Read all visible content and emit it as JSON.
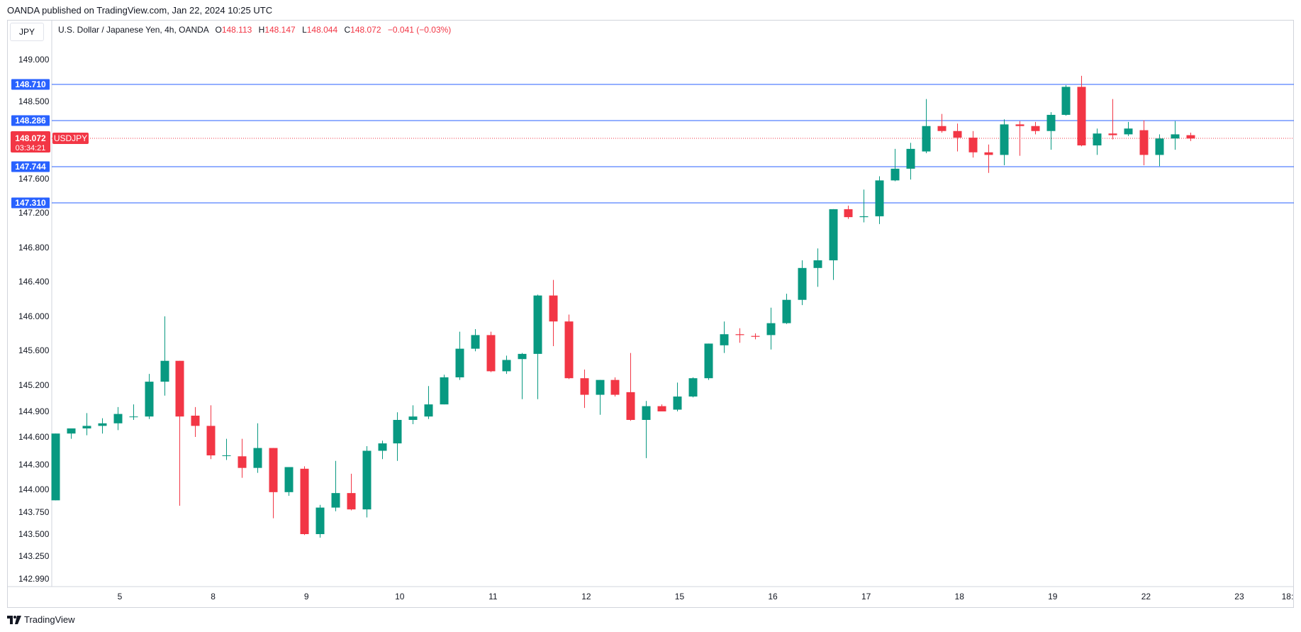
{
  "header": {
    "published": "OANDA published on TradingView.com, Jan 22, 2024 10:25 UTC",
    "currency_button": "JPY"
  },
  "legend": {
    "symbol_desc": "U.S. Dollar / Japanese Yen, 4h, OANDA",
    "open_label": "O",
    "open": "148.113",
    "high_label": "H",
    "high": "148.147",
    "low_label": "L",
    "low": "148.044",
    "close_label": "C",
    "close": "148.072",
    "change": "−0.041 (−0.03%)"
  },
  "footer": {
    "brand": "TradingView"
  },
  "colors": {
    "up": "#089981",
    "down": "#f23645",
    "hline": "#2962ff",
    "grid_text": "#131722",
    "axis_border": "#d1d4dc"
  },
  "chart_data": {
    "type": "candlestick",
    "symbol": "USDJPY",
    "interval": "4h",
    "y_ticks": [
      "149.000",
      "148.500",
      "147.600",
      "147.200",
      "146.800",
      "146.400",
      "146.000",
      "145.600",
      "145.200",
      "144.900",
      "144.600",
      "144.300",
      "144.000",
      "143.750",
      "143.500",
      "143.250",
      "142.990"
    ],
    "x_ticks": [
      {
        "label": "5",
        "at": 4.15
      },
      {
        "label": "8",
        "at": 10.15
      },
      {
        "label": "9",
        "at": 16.15
      },
      {
        "label": "10",
        "at": 22.15
      },
      {
        "label": "11",
        "at": 28.15
      },
      {
        "label": "12",
        "at": 34.15
      },
      {
        "label": "15",
        "at": 40.15
      },
      {
        "label": "16",
        "at": 46.15
      },
      {
        "label": "17",
        "at": 52.15
      },
      {
        "label": "18",
        "at": 58.15
      },
      {
        "label": "19",
        "at": 64.15
      },
      {
        "label": "22",
        "at": 70.15
      },
      {
        "label": "23",
        "at": 76.15
      },
      {
        "label": "18:",
        "at": 79.25
      }
    ],
    "horizontal_lines": [
      {
        "value": 148.71,
        "label": "148.710"
      },
      {
        "value": 148.286,
        "label": "148.286"
      },
      {
        "value": 147.744,
        "label": "147.744"
      },
      {
        "value": 147.31,
        "label": "147.310"
      }
    ],
    "last_price": {
      "value": 148.072,
      "label": "148.072",
      "countdown": "03:34:21",
      "symbol_label": "USDJPY"
    },
    "candles": [
      {
        "o": 143.88,
        "h": 144.64,
        "l": 143.88,
        "c": 144.64
      },
      {
        "o": 144.64,
        "h": 144.7,
        "l": 144.58,
        "c": 144.7
      },
      {
        "o": 144.7,
        "h": 144.88,
        "l": 144.62,
        "c": 144.73
      },
      {
        "o": 144.73,
        "h": 144.82,
        "l": 144.64,
        "c": 144.76
      },
      {
        "o": 144.76,
        "h": 144.95,
        "l": 144.68,
        "c": 144.87
      },
      {
        "o": 144.84,
        "h": 144.98,
        "l": 144.8,
        "c": 144.84
      },
      {
        "o": 144.84,
        "h": 145.33,
        "l": 144.81,
        "c": 145.24
      },
      {
        "o": 145.24,
        "h": 146.0,
        "l": 145.08,
        "c": 145.48
      },
      {
        "o": 145.48,
        "h": 145.48,
        "l": 143.82,
        "c": 144.84
      },
      {
        "o": 144.85,
        "h": 144.95,
        "l": 144.6,
        "c": 144.73
      },
      {
        "o": 144.73,
        "h": 144.97,
        "l": 144.36,
        "c": 144.4
      },
      {
        "o": 144.4,
        "h": 144.58,
        "l": 144.35,
        "c": 144.4
      },
      {
        "o": 144.39,
        "h": 144.58,
        "l": 144.14,
        "c": 144.26
      },
      {
        "o": 144.26,
        "h": 144.76,
        "l": 144.2,
        "c": 144.48
      },
      {
        "o": 144.48,
        "h": 144.48,
        "l": 143.68,
        "c": 143.97
      },
      {
        "o": 143.97,
        "h": 144.27,
        "l": 143.93,
        "c": 144.27
      },
      {
        "o": 144.25,
        "h": 144.28,
        "l": 143.49,
        "c": 143.5
      },
      {
        "o": 143.5,
        "h": 143.83,
        "l": 143.46,
        "c": 143.8
      },
      {
        "o": 143.8,
        "h": 144.34,
        "l": 143.76,
        "c": 143.96
      },
      {
        "o": 143.96,
        "h": 144.19,
        "l": 143.77,
        "c": 143.78
      },
      {
        "o": 143.78,
        "h": 144.5,
        "l": 143.69,
        "c": 144.45
      },
      {
        "o": 144.45,
        "h": 144.56,
        "l": 144.36,
        "c": 144.53
      },
      {
        "o": 144.53,
        "h": 144.89,
        "l": 144.34,
        "c": 144.8
      },
      {
        "o": 144.8,
        "h": 144.97,
        "l": 144.75,
        "c": 144.84
      },
      {
        "o": 144.84,
        "h": 145.19,
        "l": 144.81,
        "c": 144.98
      },
      {
        "o": 144.98,
        "h": 145.32,
        "l": 144.98,
        "c": 145.29
      },
      {
        "o": 145.29,
        "h": 145.82,
        "l": 145.26,
        "c": 145.62
      },
      {
        "o": 145.62,
        "h": 145.85,
        "l": 145.59,
        "c": 145.78
      },
      {
        "o": 145.78,
        "h": 145.82,
        "l": 145.35,
        "c": 145.36
      },
      {
        "o": 145.36,
        "h": 145.54,
        "l": 145.33,
        "c": 145.49
      },
      {
        "o": 145.5,
        "h": 145.57,
        "l": 145.04,
        "c": 145.56
      },
      {
        "o": 145.56,
        "h": 146.25,
        "l": 145.04,
        "c": 146.24
      },
      {
        "o": 146.24,
        "h": 146.42,
        "l": 145.65,
        "c": 145.94
      },
      {
        "o": 145.94,
        "h": 146.02,
        "l": 145.27,
        "c": 145.28
      },
      {
        "o": 145.28,
        "h": 145.38,
        "l": 144.94,
        "c": 145.09
      },
      {
        "o": 145.09,
        "h": 145.26,
        "l": 144.86,
        "c": 145.26
      },
      {
        "o": 145.26,
        "h": 145.29,
        "l": 145.07,
        "c": 145.09
      },
      {
        "o": 145.12,
        "h": 145.57,
        "l": 144.79,
        "c": 144.8
      },
      {
        "o": 144.8,
        "h": 145.02,
        "l": 144.37,
        "c": 144.96
      },
      {
        "o": 144.96,
        "h": 144.98,
        "l": 144.9,
        "c": 144.9
      },
      {
        "o": 144.92,
        "h": 145.23,
        "l": 144.9,
        "c": 145.07
      },
      {
        "o": 145.07,
        "h": 145.29,
        "l": 145.06,
        "c": 145.28
      },
      {
        "o": 145.28,
        "h": 145.68,
        "l": 145.26,
        "c": 145.68
      },
      {
        "o": 145.66,
        "h": 145.94,
        "l": 145.57,
        "c": 145.79
      },
      {
        "o": 145.79,
        "h": 145.86,
        "l": 145.69,
        "c": 145.78
      },
      {
        "o": 145.77,
        "h": 145.8,
        "l": 145.73,
        "c": 145.76
      },
      {
        "o": 145.78,
        "h": 146.1,
        "l": 145.61,
        "c": 145.92
      },
      {
        "o": 145.92,
        "h": 146.26,
        "l": 145.91,
        "c": 146.19
      },
      {
        "o": 146.19,
        "h": 146.65,
        "l": 146.13,
        "c": 146.56
      },
      {
        "o": 146.56,
        "h": 146.79,
        "l": 146.34,
        "c": 146.65
      },
      {
        "o": 146.65,
        "h": 147.24,
        "l": 146.42,
        "c": 147.24
      },
      {
        "o": 147.24,
        "h": 147.28,
        "l": 147.13,
        "c": 147.15
      },
      {
        "o": 147.15,
        "h": 147.47,
        "l": 147.09,
        "c": 147.16
      },
      {
        "o": 147.16,
        "h": 147.63,
        "l": 147.07,
        "c": 147.58
      },
      {
        "o": 147.58,
        "h": 147.95,
        "l": 147.57,
        "c": 147.72
      },
      {
        "o": 147.72,
        "h": 148.02,
        "l": 147.59,
        "c": 147.95
      },
      {
        "o": 147.92,
        "h": 148.53,
        "l": 147.9,
        "c": 148.22
      },
      {
        "o": 148.22,
        "h": 148.36,
        "l": 148.14,
        "c": 148.16
      },
      {
        "o": 148.16,
        "h": 148.25,
        "l": 147.92,
        "c": 148.08
      },
      {
        "o": 148.08,
        "h": 148.16,
        "l": 147.85,
        "c": 147.91
      },
      {
        "o": 147.91,
        "h": 148.0,
        "l": 147.67,
        "c": 147.88
      },
      {
        "o": 147.88,
        "h": 148.3,
        "l": 147.76,
        "c": 148.24
      },
      {
        "o": 148.24,
        "h": 148.28,
        "l": 147.87,
        "c": 148.22
      },
      {
        "o": 148.22,
        "h": 148.27,
        "l": 148.12,
        "c": 148.16
      },
      {
        "o": 148.16,
        "h": 148.38,
        "l": 147.94,
        "c": 148.35
      },
      {
        "o": 148.35,
        "h": 148.7,
        "l": 148.34,
        "c": 148.68
      },
      {
        "o": 148.68,
        "h": 148.81,
        "l": 147.98,
        "c": 147.99
      },
      {
        "o": 147.99,
        "h": 148.19,
        "l": 147.88,
        "c": 148.13
      },
      {
        "o": 148.13,
        "h": 148.53,
        "l": 148.06,
        "c": 148.11
      },
      {
        "o": 148.12,
        "h": 148.27,
        "l": 148.1,
        "c": 148.19
      },
      {
        "o": 148.17,
        "h": 148.29,
        "l": 147.76,
        "c": 147.88
      },
      {
        "o": 147.88,
        "h": 148.12,
        "l": 147.75,
        "c": 148.07
      },
      {
        "o": 148.07,
        "h": 148.28,
        "l": 147.94,
        "c": 148.12
      },
      {
        "o": 148.11,
        "h": 148.14,
        "l": 148.04,
        "c": 148.07
      }
    ]
  }
}
